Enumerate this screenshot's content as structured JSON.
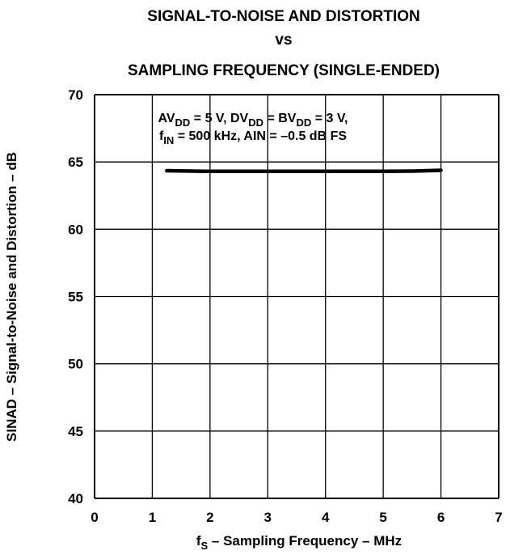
{
  "chart_data": {
    "type": "line",
    "title_lines": [
      "SIGNAL-TO-NOISE AND DISTORTION",
      "vs",
      "SAMPLING FREQUENCY (SINGLE-ENDED)"
    ],
    "xlabel": {
      "pre": "f",
      "sub": "S",
      "post": " – Sampling Frequency – MHz"
    },
    "ylabel": "SINAD – Signal-to-Noise and Distortion – dB",
    "xlim": [
      0,
      7
    ],
    "ylim": [
      40,
      70
    ],
    "x_ticks": [
      0,
      1,
      2,
      3,
      4,
      5,
      6,
      7
    ],
    "y_ticks": [
      40,
      45,
      50,
      55,
      60,
      65,
      70
    ],
    "grid": true,
    "annotation": {
      "line1": {
        "a": "AV",
        "a_sub": "DD",
        "b": " = 5 V, DV",
        "b_sub": "DD",
        "c": " = BV",
        "c_sub": "DD",
        "d": " = 3 V,"
      },
      "line2": {
        "a": "f",
        "a_sub": "IN",
        "b": " = 500 kHz, AIN = –0.5 dB FS"
      }
    },
    "series": [
      {
        "x": [
          1.25,
          2,
          3,
          4,
          5,
          5.5,
          6
        ],
        "y": [
          64.35,
          64.3,
          64.3,
          64.3,
          64.3,
          64.32,
          64.38
        ]
      }
    ]
  }
}
